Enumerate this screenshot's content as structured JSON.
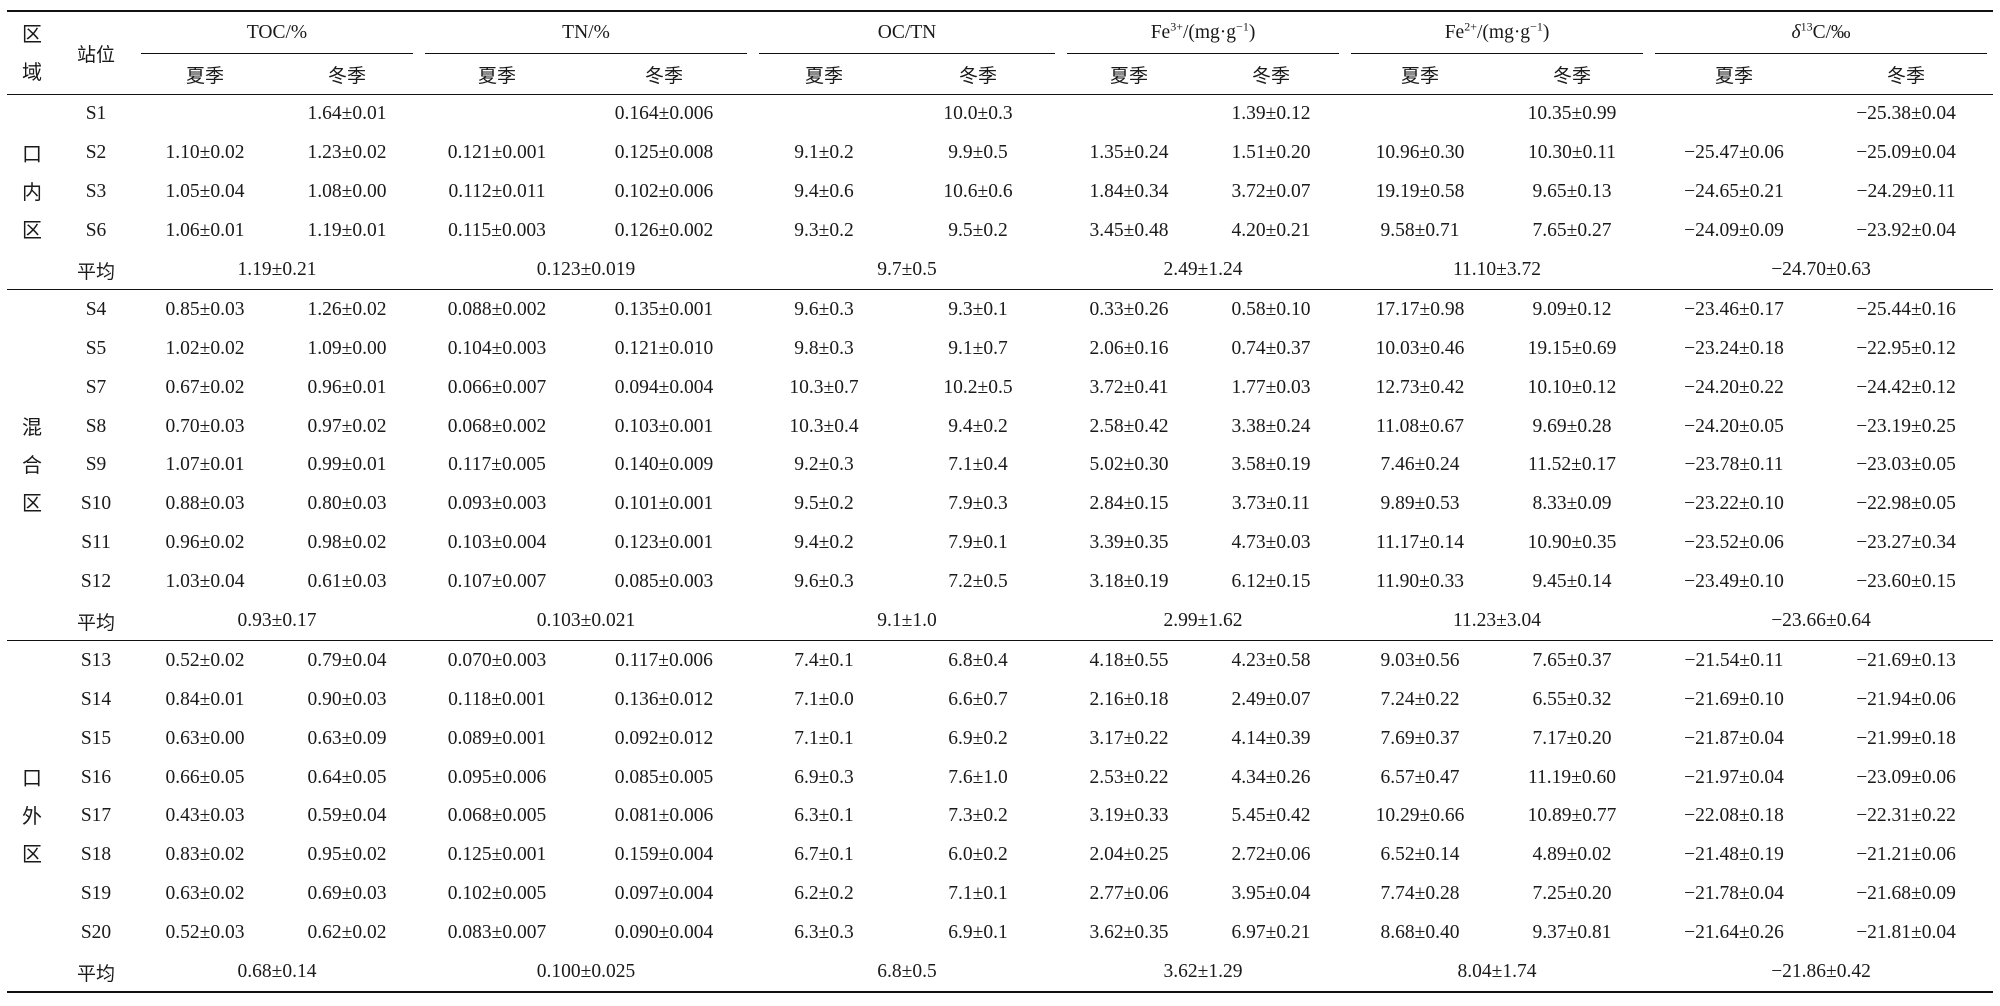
{
  "header": {
    "region_label": "区域",
    "station_label": "站位",
    "groups": [
      {
        "key": "toc",
        "label": "TOC/%"
      },
      {
        "key": "tn",
        "label": "TN/%"
      },
      {
        "key": "octn",
        "label": "OC/TN"
      },
      {
        "key": "fe3",
        "label_prefix": "Fe",
        "label_sup": "3+",
        "label_suffix": "/(mg·g",
        "label_sup2": "−1",
        "label_end": ")"
      },
      {
        "key": "fe2",
        "label_prefix": "Fe",
        "label_sup": "2+",
        "label_suffix": "/(mg·g",
        "label_sup2": "−1",
        "label_end": ")"
      },
      {
        "key": "d13c",
        "label_delta": "δ",
        "label_sup": "13",
        "label_suffix": "C/‰"
      }
    ],
    "season_summer": "夏季",
    "season_winter": "冬季"
  },
  "sections": [
    {
      "region": "口内区",
      "rows": [
        {
          "station": "S1",
          "values": [
            "",
            "1.64±0.01",
            "",
            "0.164±0.006",
            "",
            "10.0±0.3",
            "",
            "1.39±0.12",
            "",
            "10.35±0.99",
            "",
            "−25.38±0.04"
          ]
        },
        {
          "station": "S2",
          "values": [
            "1.10±0.02",
            "1.23±0.02",
            "0.121±0.001",
            "0.125±0.008",
            "9.1±0.2",
            "9.9±0.5",
            "1.35±0.24",
            "1.51±0.20",
            "10.96±0.30",
            "10.30±0.11",
            "−25.47±0.06",
            "−25.09±0.04"
          ]
        },
        {
          "station": "S3",
          "values": [
            "1.05±0.04",
            "1.08±0.00",
            "0.112±0.011",
            "0.102±0.006",
            "9.4±0.6",
            "10.6±0.6",
            "1.84±0.34",
            "3.72±0.07",
            "19.19±0.58",
            "9.65±0.13",
            "−24.65±0.21",
            "−24.29±0.11"
          ]
        },
        {
          "station": "S6",
          "values": [
            "1.06±0.01",
            "1.19±0.01",
            "0.115±0.003",
            "0.126±0.002",
            "9.3±0.2",
            "9.5±0.2",
            "3.45±0.48",
            "4.20±0.21",
            "9.58±0.71",
            "7.65±0.27",
            "−24.09±0.09",
            "−23.92±0.04"
          ]
        }
      ],
      "avg_label": "平均",
      "avg": [
        "1.19±0.21",
        "0.123±0.019",
        "9.7±0.5",
        "2.49±1.24",
        "11.10±3.72",
        "−24.70±0.63"
      ]
    },
    {
      "region": "混合区",
      "rows": [
        {
          "station": "S4",
          "values": [
            "0.85±0.03",
            "1.26±0.02",
            "0.088±0.002",
            "0.135±0.001",
            "9.6±0.3",
            "9.3±0.1",
            "0.33±0.26",
            "0.58±0.10",
            "17.17±0.98",
            "9.09±0.12",
            "−23.46±0.17",
            "−25.44±0.16"
          ]
        },
        {
          "station": "S5",
          "values": [
            "1.02±0.02",
            "1.09±0.00",
            "0.104±0.003",
            "0.121±0.010",
            "9.8±0.3",
            "9.1±0.7",
            "2.06±0.16",
            "0.74±0.37",
            "10.03±0.46",
            "19.15±0.69",
            "−23.24±0.18",
            "−22.95±0.12"
          ]
        },
        {
          "station": "S7",
          "values": [
            "0.67±0.02",
            "0.96±0.01",
            "0.066±0.007",
            "0.094±0.004",
            "10.3±0.7",
            "10.2±0.5",
            "3.72±0.41",
            "1.77±0.03",
            "12.73±0.42",
            "10.10±0.12",
            "−24.20±0.22",
            "−24.42±0.12"
          ]
        },
        {
          "station": "S8",
          "values": [
            "0.70±0.03",
            "0.97±0.02",
            "0.068±0.002",
            "0.103±0.001",
            "10.3±0.4",
            "9.4±0.2",
            "2.58±0.42",
            "3.38±0.24",
            "11.08±0.67",
            "9.69±0.28",
            "−24.20±0.05",
            "−23.19±0.25"
          ]
        },
        {
          "station": "S9",
          "values": [
            "1.07±0.01",
            "0.99±0.01",
            "0.117±0.005",
            "0.140±0.009",
            "9.2±0.3",
            "7.1±0.4",
            "5.02±0.30",
            "3.58±0.19",
            "7.46±0.24",
            "11.52±0.17",
            "−23.78±0.11",
            "−23.03±0.05"
          ]
        },
        {
          "station": "S10",
          "values": [
            "0.88±0.03",
            "0.80±0.03",
            "0.093±0.003",
            "0.101±0.001",
            "9.5±0.2",
            "7.9±0.3",
            "2.84±0.15",
            "3.73±0.11",
            "9.89±0.53",
            "8.33±0.09",
            "−23.22±0.10",
            "−22.98±0.05"
          ]
        },
        {
          "station": "S11",
          "values": [
            "0.96±0.02",
            "0.98±0.02",
            "0.103±0.004",
            "0.123±0.001",
            "9.4±0.2",
            "7.9±0.1",
            "3.39±0.35",
            "4.73±0.03",
            "11.17±0.14",
            "10.90±0.35",
            "−23.52±0.06",
            "−23.27±0.34"
          ]
        },
        {
          "station": "S12",
          "values": [
            "1.03±0.04",
            "0.61±0.03",
            "0.107±0.007",
            "0.085±0.003",
            "9.6±0.3",
            "7.2±0.5",
            "3.18±0.19",
            "6.12±0.15",
            "11.90±0.33",
            "9.45±0.14",
            "−23.49±0.10",
            "−23.60±0.15"
          ]
        }
      ],
      "avg_label": "平均",
      "avg": [
        "0.93±0.17",
        "0.103±0.021",
        "9.1±1.0",
        "2.99±1.62",
        "11.23±3.04",
        "−23.66±0.64"
      ]
    },
    {
      "region": "口外区",
      "rows": [
        {
          "station": "S13",
          "values": [
            "0.52±0.02",
            "0.79±0.04",
            "0.070±0.003",
            "0.117±0.006",
            "7.4±0.1",
            "6.8±0.4",
            "4.18±0.55",
            "4.23±0.58",
            "9.03±0.56",
            "7.65±0.37",
            "−21.54±0.11",
            "−21.69±0.13"
          ]
        },
        {
          "station": "S14",
          "values": [
            "0.84±0.01",
            "0.90±0.03",
            "0.118±0.001",
            "0.136±0.012",
            "7.1±0.0",
            "6.6±0.7",
            "2.16±0.18",
            "2.49±0.07",
            "7.24±0.22",
            "6.55±0.32",
            "−21.69±0.10",
            "−21.94±0.06"
          ]
        },
        {
          "station": "S15",
          "values": [
            "0.63±0.00",
            "0.63±0.09",
            "0.089±0.001",
            "0.092±0.012",
            "7.1±0.1",
            "6.9±0.2",
            "3.17±0.22",
            "4.14±0.39",
            "7.69±0.37",
            "7.17±0.20",
            "−21.87±0.04",
            "−21.99±0.18"
          ]
        },
        {
          "station": "S16",
          "values": [
            "0.66±0.05",
            "0.64±0.05",
            "0.095±0.006",
            "0.085±0.005",
            "6.9±0.3",
            "7.6±1.0",
            "2.53±0.22",
            "4.34±0.26",
            "6.57±0.47",
            "11.19±0.60",
            "−21.97±0.04",
            "−23.09±0.06"
          ]
        },
        {
          "station": "S17",
          "values": [
            "0.43±0.03",
            "0.59±0.04",
            "0.068±0.005",
            "0.081±0.006",
            "6.3±0.1",
            "7.3±0.2",
            "3.19±0.33",
            "5.45±0.42",
            "10.29±0.66",
            "10.89±0.77",
            "−22.08±0.18",
            "−22.31±0.22"
          ]
        },
        {
          "station": "S18",
          "values": [
            "0.83±0.02",
            "0.95±0.02",
            "0.125±0.001",
            "0.159±0.004",
            "6.7±0.1",
            "6.0±0.2",
            "2.04±0.25",
            "2.72±0.06",
            "6.52±0.14",
            "4.89±0.02",
            "−21.48±0.19",
            "−21.21±0.06"
          ]
        },
        {
          "station": "S19",
          "values": [
            "0.63±0.02",
            "0.69±0.03",
            "0.102±0.005",
            "0.097±0.004",
            "6.2±0.2",
            "7.1±0.1",
            "2.77±0.06",
            "3.95±0.04",
            "7.74±0.28",
            "7.25±0.20",
            "−21.78±0.04",
            "−21.68±0.09"
          ]
        },
        {
          "station": "S20",
          "values": [
            "0.52±0.03",
            "0.62±0.02",
            "0.083±0.007",
            "0.090±0.004",
            "6.3±0.3",
            "6.9±0.1",
            "3.62±0.35",
            "6.97±0.21",
            "8.68±0.40",
            "9.37±0.81",
            "−21.64±0.26",
            "−21.81±0.04"
          ]
        }
      ],
      "avg_label": "平均",
      "avg": [
        "0.68±0.14",
        "0.100±0.025",
        "6.8±0.5",
        "3.62±1.29",
        "8.04±1.74",
        "−21.86±0.42"
      ]
    }
  ]
}
